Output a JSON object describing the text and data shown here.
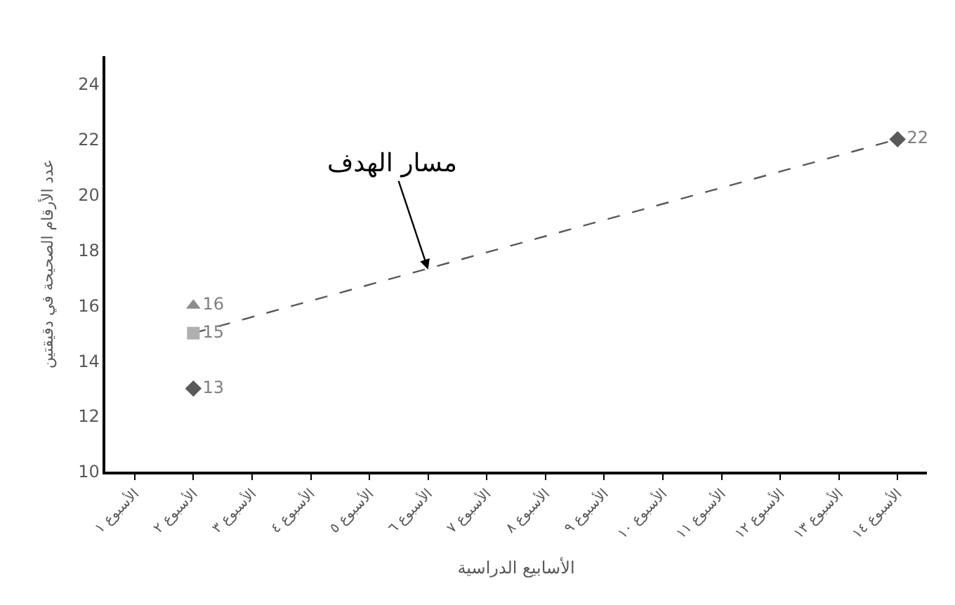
{
  "chart_data": {
    "type": "scatter",
    "xlabel": "الأسابيع الدراسية",
    "ylabel": "عدد الأرقام الصحيحة في دقيقتين",
    "categories": [
      "الأسبوع ١",
      "الأسبوع ٢",
      "الأسبوع ٣",
      "الأسبوع ٤",
      "الأسبوع ٥",
      "الأسبوع ٦",
      "الأسبوع ٧",
      "الأسبوع ٨",
      "الأسبوع ٩",
      "الأسبوع ١٠",
      "الأسبوع ١١",
      "الأسبوع ١٢",
      "الأسبوع ١٣",
      "الأسبوع ١٤"
    ],
    "series": [
      {
        "type": "line",
        "color": "#595959",
        "line_style": "dashed",
        "marker": "none",
        "values": [
          null,
          15,
          null,
          null,
          null,
          null,
          null,
          null,
          null,
          null,
          null,
          null,
          null,
          22
        ]
      },
      {
        "color": "#8c8c8c",
        "marker": "triangle",
        "data_labels": true,
        "values": [
          null,
          16,
          null,
          null,
          null,
          null,
          null,
          null,
          null,
          null,
          null,
          null,
          null,
          null
        ]
      },
      {
        "color": "#b0b0b0",
        "marker": "square",
        "data_labels": true,
        "values": [
          null,
          15,
          null,
          null,
          null,
          null,
          null,
          null,
          null,
          null,
          null,
          null,
          null,
          null
        ]
      },
      {
        "color": "#595959",
        "marker": "diamond",
        "data_labels": true,
        "values": [
          null,
          13,
          null,
          null,
          null,
          null,
          null,
          null,
          null,
          null,
          null,
          null,
          null,
          22
        ]
      }
    ],
    "ylim": [
      10,
      25
    ],
    "yticks": [
      10,
      12,
      14,
      16,
      18,
      20,
      22,
      24
    ],
    "annotations": [
      {
        "text": "مسار الهدف",
        "x": "الأسبوع ٦",
        "y": 17.3
      }
    ]
  }
}
